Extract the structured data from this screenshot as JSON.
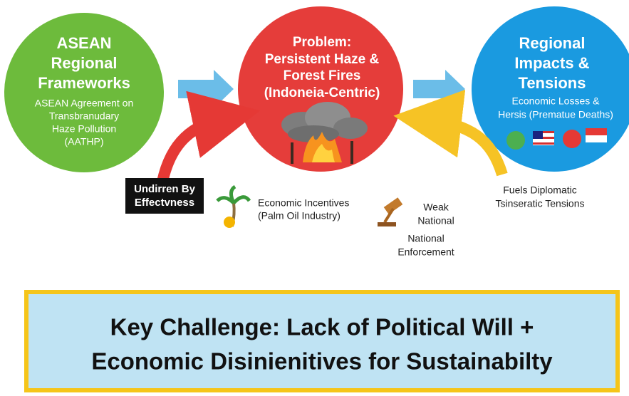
{
  "nodes": [
    {
      "title_lines": [
        "ASEAN",
        "Regional",
        "Frameworks"
      ],
      "detail_lines": [
        "ASEAN Agreement on",
        "Transbranudary",
        "Haze Pollution",
        "(AATHP)"
      ]
    },
    {
      "title_lines": [
        "Problem:",
        "Persistent Haze &",
        "Forest Fires",
        "(Indoneia-Centric)"
      ]
    },
    {
      "title_lines": [
        "Regional",
        "Impacts &",
        "Tensions"
      ],
      "detail_lines": [
        "Economic Losses &",
        "Hersis (Prematue Deaths)"
      ]
    }
  ],
  "labels": {
    "undermined": [
      "Undirren By",
      "Effectvness"
    ],
    "incentives": [
      "Economic Incentives",
      "(Palm Oil Industry)"
    ],
    "weak": [
      "Weak",
      "National"
    ],
    "enforcement": [
      "National",
      "Enforcement"
    ],
    "diplomatic": [
      "Fuels Diplomatic",
      "Tsinseratic Tensions"
    ]
  },
  "key_challenge": [
    "Key Challenge: Lack of Political Will +",
    "Economic Disinienitives for Sustainabilty"
  ]
}
